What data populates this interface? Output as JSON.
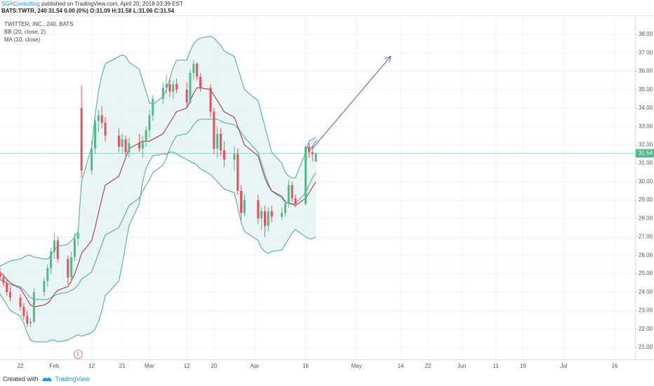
{
  "header": {
    "author": "SGAConsulting",
    "published": "published on TradingView.com, April 20, 2018 03:39 EST",
    "quote": "BATS:TWTR, 240  31.54 0.00 (0%)  O:31.09 H:31.58 L:31.06 C:31.54"
  },
  "footer": {
    "created": "Created with",
    "brand": "TradingView"
  },
  "chart_data": {
    "type": "candlestick",
    "title": "TWITTER, INC., 240, BATS",
    "up_color": "#53b987",
    "down_color": "#eb4d5c",
    "x": [
      "2018-01-16",
      "2018-01-17",
      "2018-01-18",
      "2018-01-19",
      "2018-01-22",
      "2018-01-23",
      "2018-01-24",
      "2018-01-25",
      "2018-01-26",
      "2018-01-29",
      "2018-01-30",
      "2018-01-31",
      "2018-02-01",
      "2018-02-02",
      "2018-02-05",
      "2018-02-06",
      "2018-02-07",
      "2018-02-08",
      "2018-02-09",
      "2018-02-12",
      "2018-02-13",
      "2018-02-14",
      "2018-02-15",
      "2018-02-16",
      "2018-02-20",
      "2018-02-21",
      "2018-02-22",
      "2018-02-23",
      "2018-02-26",
      "2018-02-27",
      "2018-02-28",
      "2018-03-01",
      "2018-03-02",
      "2018-03-05",
      "2018-03-06",
      "2018-03-07",
      "2018-03-08",
      "2018-03-09",
      "2018-03-12",
      "2018-03-13",
      "2018-03-14",
      "2018-03-15",
      "2018-03-16",
      "2018-03-19",
      "2018-03-20",
      "2018-03-21",
      "2018-03-22",
      "2018-03-23",
      "2018-03-26",
      "2018-03-27",
      "2018-03-28",
      "2018-03-29",
      "2018-04-02",
      "2018-04-03",
      "2018-04-04",
      "2018-04-05",
      "2018-04-06",
      "2018-04-09",
      "2018-04-10",
      "2018-04-11",
      "2018-04-12",
      "2018-04-13",
      "2018-04-16",
      "2018-04-17",
      "2018-04-18",
      "2018-04-19"
    ],
    "open": [
      25.1,
      24.8,
      24.5,
      24.0,
      23.7,
      23.2,
      22.7,
      22.3,
      22.4,
      24.0,
      24.6,
      25.3,
      26.2,
      26.8,
      25.8,
      24.8,
      25.9,
      26.9,
      34.0,
      30.6,
      31.8,
      33.3,
      33.6,
      33.2,
      32.5,
      31.9,
      32.3,
      31.6,
      32.1,
      31.8,
      32.2,
      32.8,
      33.6,
      34.5,
      35.1,
      35.3,
      34.9,
      35.3,
      35.0,
      34.3,
      35.9,
      36.4,
      35.7,
      35.1,
      33.8,
      31.8,
      32.6,
      31.7,
      31.2,
      31.5,
      29.5,
      28.3,
      29.0,
      28.0,
      28.4,
      27.6,
      28.4,
      28.1,
      28.3,
      28.8,
      29.8,
      29.1,
      28.8,
      31.9,
      31.6,
      31.09
    ],
    "high": [
      25.3,
      25.0,
      24.7,
      24.3,
      23.9,
      23.4,
      23.0,
      22.6,
      24.2,
      24.8,
      25.5,
      26.4,
      27.2,
      27.0,
      26.0,
      26.2,
      27.2,
      27.5,
      35.2,
      32.2,
      33.6,
      33.9,
      34.1,
      33.5,
      32.9,
      32.6,
      32.5,
      32.4,
      32.6,
      32.5,
      33.0,
      33.9,
      34.7,
      35.4,
      35.8,
      35.6,
      35.5,
      35.6,
      35.4,
      36.1,
      36.6,
      36.5,
      35.9,
      35.3,
      34.0,
      33.0,
      32.9,
      32.2,
      31.9,
      31.8,
      29.8,
      29.3,
      29.3,
      28.6,
      28.7,
      28.6,
      28.7,
      28.6,
      29.0,
      30.1,
      30.0,
      29.3,
      32.0,
      32.1,
      31.9,
      31.58
    ],
    "low": [
      24.6,
      24.3,
      23.8,
      23.5,
      23.0,
      22.5,
      22.1,
      22.1,
      22.3,
      23.8,
      24.3,
      25.0,
      25.8,
      25.6,
      24.4,
      24.5,
      25.7,
      26.5,
      30.2,
      30.4,
      31.5,
      32.7,
      32.9,
      32.2,
      31.6,
      31.5,
      31.4,
      31.3,
      31.6,
      31.3,
      31.9,
      32.4,
      33.3,
      34.2,
      34.8,
      34.6,
      34.5,
      34.8,
      34.0,
      34.2,
      35.5,
      35.5,
      34.9,
      33.5,
      31.5,
      31.3,
      31.4,
      30.8,
      30.6,
      29.3,
      27.9,
      28.1,
      27.7,
      27.4,
      27.0,
      27.3,
      27.8,
      27.9,
      28.1,
      28.6,
      28.9,
      28.6,
      28.7,
      31.3,
      31.1,
      31.06
    ],
    "close": [
      24.8,
      24.5,
      24.0,
      23.7,
      23.2,
      22.7,
      22.3,
      22.4,
      24.0,
      24.6,
      25.3,
      26.2,
      26.8,
      25.8,
      24.8,
      25.9,
      26.9,
      27.2,
      30.6,
      31.8,
      33.3,
      33.6,
      33.2,
      32.5,
      31.9,
      32.3,
      31.6,
      32.1,
      31.8,
      32.2,
      32.8,
      33.6,
      34.5,
      35.1,
      35.3,
      34.9,
      35.3,
      35.0,
      34.3,
      35.9,
      36.4,
      35.7,
      35.1,
      33.8,
      31.8,
      32.6,
      31.7,
      31.2,
      31.5,
      29.5,
      28.3,
      29.0,
      28.0,
      28.4,
      27.6,
      28.4,
      28.1,
      28.3,
      28.8,
      29.8,
      29.1,
      28.8,
      31.9,
      31.6,
      31.5,
      31.54
    ],
    "series": [
      {
        "name": "BB (20, close, 2)",
        "color": "#4aa3a0",
        "fill": "#e3f3f2",
        "upper": [
          25.4,
          25.5,
          25.6,
          25.7,
          25.8,
          25.9,
          26.0,
          26.0,
          25.9,
          25.8,
          25.8,
          26.0,
          26.3,
          26.5,
          26.6,
          26.8,
          27.0,
          27.3,
          30.0,
          31.9,
          33.6,
          34.9,
          35.8,
          36.4,
          36.8,
          36.9,
          36.8,
          36.5,
          36.1,
          35.5,
          34.9,
          34.3,
          34.2,
          34.6,
          35.0,
          35.6,
          36.2,
          36.6,
          36.6,
          37.1,
          37.5,
          37.7,
          37.8,
          37.9,
          37.8,
          37.6,
          37.4,
          37.1,
          36.8,
          36.2,
          35.6,
          35.0,
          34.4,
          33.7,
          33.0,
          32.3,
          31.6,
          31.0,
          30.5,
          30.3,
          30.2,
          30.2,
          31.6,
          32.2,
          32.3,
          32.4
        ],
        "basis": [
          24.7,
          24.6,
          24.5,
          24.4,
          24.3,
          24.1,
          23.9,
          23.7,
          23.6,
          23.6,
          23.6,
          23.7,
          23.8,
          23.9,
          24.0,
          24.1,
          24.2,
          24.4,
          24.7,
          25.1,
          25.6,
          26.1,
          26.6,
          27.1,
          27.5,
          27.9,
          28.3,
          28.7,
          29.1,
          29.5,
          29.8,
          30.1,
          30.5,
          30.9,
          31.3,
          31.8,
          32.2,
          32.5,
          32.6,
          32.8,
          33.1,
          33.3,
          33.4,
          33.4,
          33.4,
          33.4,
          33.3,
          33.2,
          33.1,
          32.9,
          32.7,
          32.4,
          31.6,
          31.0,
          30.4,
          29.9,
          29.5,
          29.1,
          28.9,
          28.8,
          28.8,
          28.8,
          29.4,
          29.8,
          30.2,
          30.5
        ],
        "lower": [
          23.9,
          23.6,
          23.3,
          23.0,
          22.7,
          22.3,
          21.8,
          21.4,
          21.3,
          21.3,
          21.3,
          21.4,
          21.4,
          21.3,
          21.4,
          21.5,
          21.6,
          21.7,
          21.6,
          21.8,
          22.0,
          22.4,
          23.0,
          23.8,
          24.6,
          25.5,
          26.6,
          27.6,
          28.8,
          30.0,
          30.7,
          31.1,
          31.4,
          31.5,
          31.5,
          31.6,
          31.6,
          31.5,
          31.2,
          31.1,
          31.0,
          30.9,
          30.7,
          30.4,
          30.2,
          30.0,
          29.8,
          29.6,
          29.4,
          28.6,
          27.8,
          27.3,
          26.8,
          26.4,
          26.2,
          26.1,
          26.2,
          26.3,
          26.6,
          26.9,
          27.2,
          27.4,
          27.0,
          26.9,
          26.9,
          27.0
        ]
      },
      {
        "name": "MA (10, close)",
        "color": "#9b2745",
        "values": [
          25.0,
          24.9,
          24.7,
          24.5,
          24.2,
          23.9,
          23.6,
          23.3,
          23.2,
          23.3,
          23.4,
          23.6,
          23.9,
          24.1,
          24.3,
          24.6,
          25.0,
          25.5,
          26.1,
          26.8,
          27.5,
          28.3,
          29.1,
          29.8,
          30.3,
          30.8,
          31.3,
          31.8,
          32.1,
          32.2,
          32.2,
          32.2,
          32.3,
          32.6,
          32.9,
          33.2,
          33.5,
          33.8,
          34.0,
          34.4,
          34.8,
          35.1,
          35.1,
          35.0,
          34.7,
          34.4,
          34.1,
          33.8,
          33.5,
          33.0,
          32.5,
          32.0,
          31.4,
          30.8,
          30.2,
          29.8,
          29.5,
          29.2,
          28.9,
          28.8,
          28.8,
          28.7,
          29.1,
          29.4,
          29.7,
          30.0
        ]
      }
    ],
    "last_price": 31.54,
    "last_price_color": "#53b987",
    "earnings": {
      "label": "E",
      "x": "2018-02-08"
    },
    "xlim": [
      "2018-01-16",
      "2018-07-22"
    ],
    "xticks": [
      {
        "value": "2018-01-22",
        "label": "22"
      },
      {
        "value": "2018-02-01",
        "label": "Feb"
      },
      {
        "value": "2018-02-12",
        "label": "12"
      },
      {
        "value": "2018-02-21",
        "label": "21"
      },
      {
        "value": "2018-03-01",
        "label": "Mar"
      },
      {
        "value": "2018-03-12",
        "label": "12"
      },
      {
        "value": "2018-03-20",
        "label": "20"
      },
      {
        "value": "2018-04-01",
        "label": "Apr"
      },
      {
        "value": "2018-04-16",
        "label": "16"
      },
      {
        "value": "2018-05-01",
        "label": "May"
      },
      {
        "value": "2018-05-14",
        "label": "14"
      },
      {
        "value": "2018-05-22",
        "label": "22"
      },
      {
        "value": "2018-06-01",
        "label": "Jun"
      },
      {
        "value": "2018-06-11",
        "label": "11"
      },
      {
        "value": "2018-06-19",
        "label": "19"
      },
      {
        "value": "2018-07-01",
        "label": "Jul"
      },
      {
        "value": "2018-07-16",
        "label": "16"
      }
    ],
    "ylim": [
      20.35,
      39.03
    ],
    "yticks": [
      {
        "value": 21,
        "label": "21.00"
      },
      {
        "value": 22,
        "label": "22.00"
      },
      {
        "value": 23,
        "label": "23.00"
      },
      {
        "value": 24,
        "label": "24.00"
      },
      {
        "value": 25,
        "label": "25.00"
      },
      {
        "value": 26,
        "label": "26.00"
      },
      {
        "value": 27,
        "label": "27.00"
      },
      {
        "value": 28,
        "label": "28.00"
      },
      {
        "value": 29,
        "label": "29.00"
      },
      {
        "value": 30,
        "label": "30.00"
      },
      {
        "value": 31,
        "label": "31.00"
      },
      {
        "value": 32,
        "label": "32.00"
      },
      {
        "value": 33,
        "label": "33.00"
      },
      {
        "value": 34,
        "label": "34.00"
      },
      {
        "value": 35,
        "label": "35.00"
      },
      {
        "value": 36,
        "label": "36.00"
      },
      {
        "value": 37,
        "label": "37.00"
      },
      {
        "value": 38,
        "label": "38.00"
      }
    ],
    "grid": true
  }
}
